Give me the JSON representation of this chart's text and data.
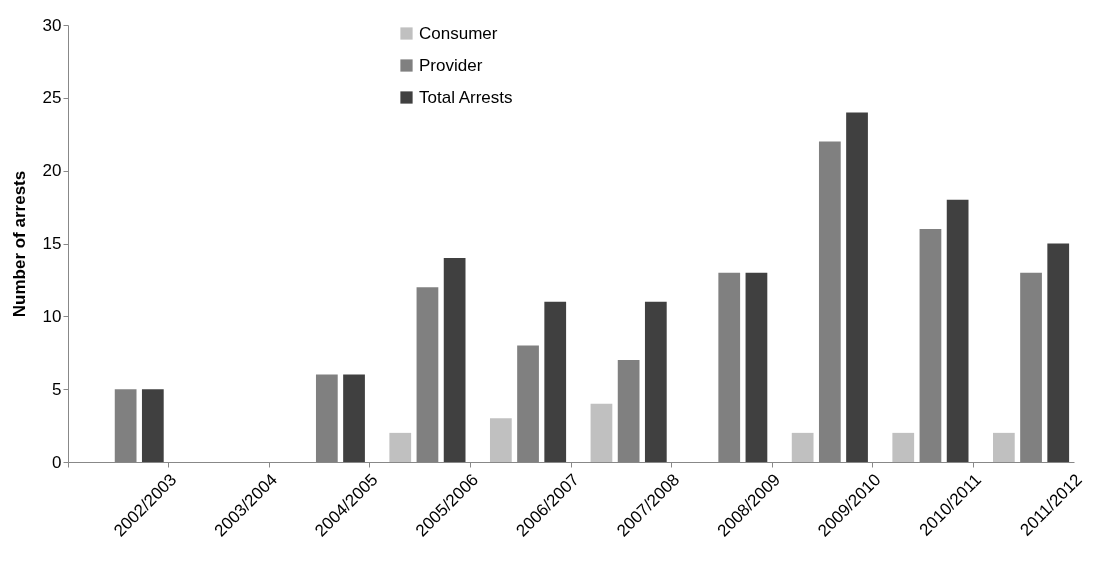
{
  "chart_data": {
    "type": "bar",
    "ylabel": "Number of arrests",
    "categories": [
      "2002/2003",
      "2003/2004",
      "2004/2005",
      "2005/2006",
      "2006/2007",
      "2007/2008",
      "2008/2009",
      "2009/2010",
      "2010/2011",
      "2011/2012"
    ],
    "series": [
      {
        "name": "Consumer",
        "color": "#c0c0c0",
        "values": [
          0,
          0,
          0,
          2,
          3,
          4,
          0,
          2,
          2,
          2
        ]
      },
      {
        "name": "Provider",
        "color": "#808080",
        "values": [
          5,
          0,
          6,
          12,
          8,
          7,
          13,
          22,
          16,
          13
        ]
      },
      {
        "name": "Total Arrests",
        "color": "#404040",
        "values": [
          5,
          0,
          6,
          14,
          11,
          11,
          13,
          24,
          18,
          15
        ]
      }
    ],
    "ylim": [
      0,
      30
    ],
    "yticks": [
      0,
      5,
      10,
      15,
      20,
      25,
      30
    ],
    "grid": false,
    "legend": "top"
  }
}
